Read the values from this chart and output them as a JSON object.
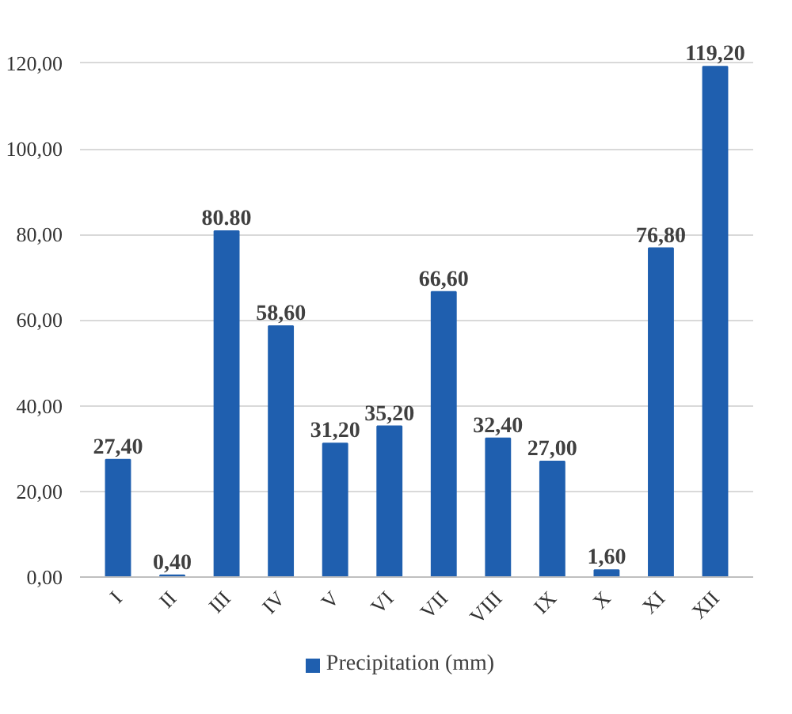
{
  "chart_data": {
    "type": "bar",
    "categories": [
      "I",
      "II",
      "III",
      "IV",
      "V",
      "VI",
      "VII",
      "VIII",
      "IX",
      "X",
      "XI",
      "XII"
    ],
    "series": [
      {
        "name": "Precipitation (mm)",
        "color": "#1f5faf",
        "values": [
          27.4,
          0.4,
          80.8,
          58.6,
          31.2,
          35.2,
          66.6,
          32.4,
          27.0,
          1.6,
          76.8,
          119.2
        ],
        "value_labels": [
          "27,40",
          "0,40",
          "80.80",
          "58,60",
          "31,20",
          "35,20",
          "66,60",
          "32,40",
          "27,00",
          "1,60",
          "76,80",
          "119,20"
        ]
      }
    ],
    "ylim": [
      0,
      120
    ],
    "yticks": [
      {
        "value": 0,
        "label": "0,00"
      },
      {
        "value": 20,
        "label": "20,00"
      },
      {
        "value": 40,
        "label": "40,00"
      },
      {
        "value": 60,
        "label": "60,00"
      },
      {
        "value": 80,
        "label": "80,00"
      },
      {
        "value": 100,
        "label": "100,00"
      },
      {
        "value": 120,
        "label": "120,00"
      }
    ],
    "grid": "y",
    "legend": "bottom"
  }
}
